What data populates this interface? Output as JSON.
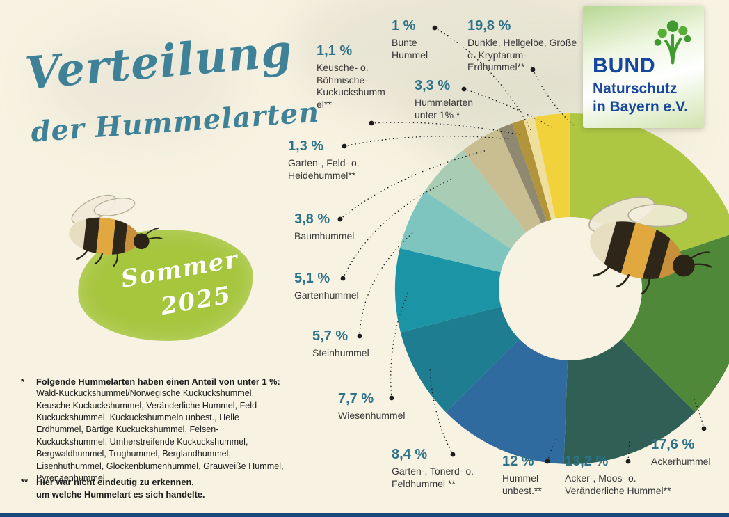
{
  "infographic": {
    "title": {
      "line1": "Verteilung",
      "line2": "der Hummelarten"
    },
    "badge": {
      "word": "Sommer",
      "year": "2025"
    },
    "logo": {
      "brand": "BUND",
      "org_line1": "Naturschutz",
      "org_line2": "in Bayern e.V."
    },
    "footnote_single": {
      "marker": "*",
      "heading": "Folgende Hummelarten haben einen Anteil von unter 1 %:",
      "body": "Wald-Kuckuckshummel/Norwegische Kuckuckshummel, Keusche Kuckuckshummel, Veränderliche Hummel, Feld-Kuckuckshummel, Kuckuckshummeln unbest., Helle Erdhummel, Bärtige Kuckuckshummel, Felsen-Kuckuckshummel, Umherstreifende Kuckuckshummel, Bergwaldhummel, Trughummel, Berglandhummel, Eisenhuthummel, Glockenblumenhummel, Grauweiße Hummel, Pyrenäenhummel"
    },
    "footnote_double": {
      "marker": "**",
      "line1": "Hier war nicht eindeutig zu erkennen,",
      "line2": "um welche Hummelart es sich handelte."
    }
  },
  "chart_data": {
    "type": "pie",
    "variant": "donut",
    "title": "Verteilung der Hummelarten",
    "period": "Sommer 2025",
    "unit": "%",
    "total": 100,
    "start_angle": "12 o'clock",
    "direction": "clockwise",
    "legend_position": "callout labels around donut",
    "accent_color": "#2d7389",
    "segments": [
      {
        "name": "Dunkle, Hellgelbe, Große o. Kryptarum-Erdhummel**",
        "value": 19.8,
        "display": "19,8 %",
        "color": "#adc743"
      },
      {
        "name": "Ackerhummel",
        "value": 17.6,
        "display": "17,6 %",
        "color": "#4f8839"
      },
      {
        "name": "Acker-, Moos- o. Veränderliche Hummel**",
        "value": 13.2,
        "display": "13,2 %",
        "color": "#2f5f55"
      },
      {
        "name": "Hummel unbest.**",
        "value": 12,
        "display": "12 %",
        "color": "#2f6b9f"
      },
      {
        "name": "Garten-, Tonerd- o. Feldhummel **",
        "value": 8.4,
        "display": "8,4 %",
        "color": "#1f7d92"
      },
      {
        "name": "Wiesenhummel",
        "value": 7.7,
        "display": "7,7 %",
        "color": "#1b95a5"
      },
      {
        "name": "Steinhummel",
        "value": 5.7,
        "display": "5,7 %",
        "color": "#7ec5c0"
      },
      {
        "name": "Gartenhummel",
        "value": 5.1,
        "display": "5,1 %",
        "color": "#a9cdb4"
      },
      {
        "name": "Baumhummel",
        "value": 3.8,
        "display": "3,8 %",
        "color": "#c9bd92"
      },
      {
        "name": "Garten-, Feld- o. Heidehummel**",
        "value": 1.3,
        "display": "1,3 %",
        "color": "#8f8971"
      },
      {
        "name": "Keusche- o. Böhmische-Kuckuckshummel**",
        "value": 1.1,
        "display": "1,1 %",
        "color": "#b2953b"
      },
      {
        "name": "Bunte Hummel",
        "value": 1.0,
        "display": "1 %",
        "color": "#efdf9e"
      },
      {
        "name": "Hummelarten unter 1% *",
        "value": 3.3,
        "display": "3,3 %",
        "color": "#f1d23b"
      }
    ]
  }
}
